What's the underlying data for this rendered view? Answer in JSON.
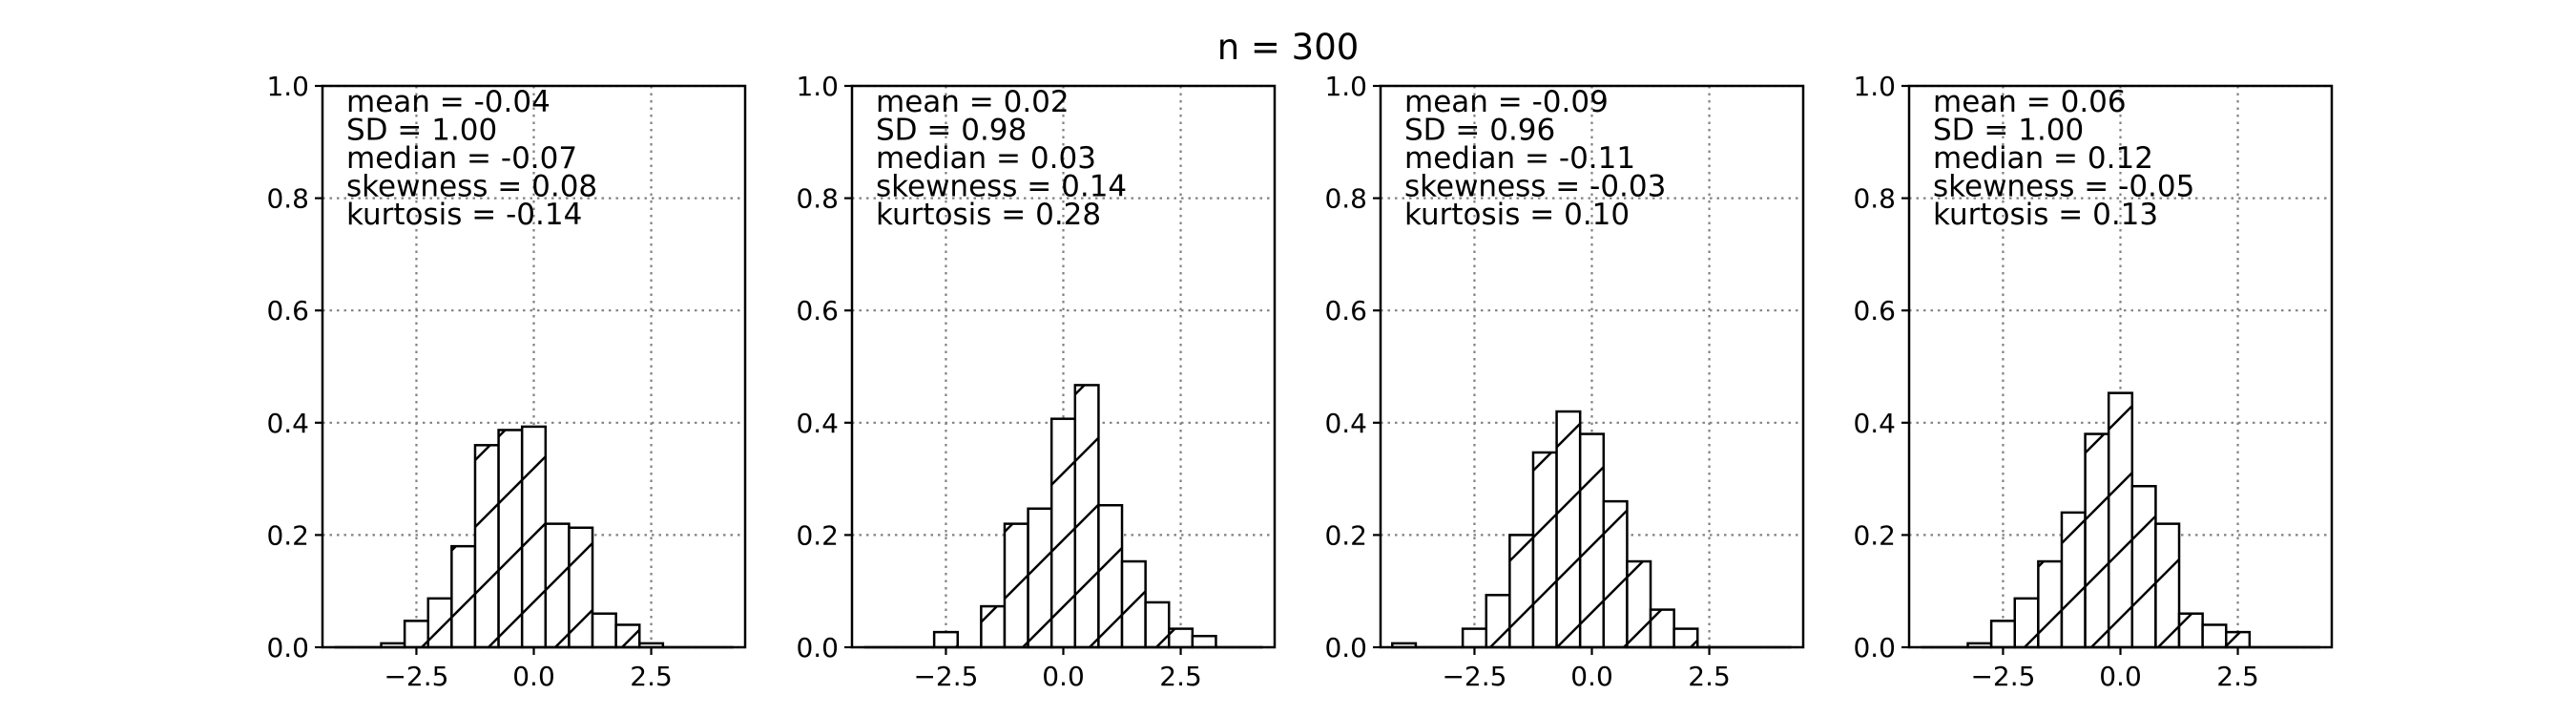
{
  "chart_data": {
    "title": "n = 300",
    "panels": [
      {
        "type": "bar",
        "bin_width": 0.5,
        "bin_centers": [
          -4.0,
          -3.5,
          -3.0,
          -2.5,
          -2.0,
          -1.5,
          -1.0,
          -0.5,
          0.0,
          0.5,
          1.0,
          1.5,
          2.0,
          2.5,
          3.0,
          3.5,
          4.0
        ],
        "values": [
          0.0,
          0.0,
          0.007,
          0.047,
          0.087,
          0.18,
          0.36,
          0.387,
          0.393,
          0.22,
          0.213,
          0.06,
          0.04,
          0.007,
          0.0,
          0.0,
          0.0
        ],
        "stats": [
          "mean = -0.04",
          "SD = 1.00",
          "median = -0.07",
          "skewness = 0.08",
          "kurtosis = -0.14"
        ]
      },
      {
        "type": "bar",
        "bin_width": 0.5,
        "bin_centers": [
          -4.0,
          -3.5,
          -3.0,
          -2.5,
          -2.0,
          -1.5,
          -1.0,
          -0.5,
          0.0,
          0.5,
          1.0,
          1.5,
          2.0,
          2.5,
          3.0,
          3.5,
          4.0
        ],
        "values": [
          0.0,
          0.0,
          0.0,
          0.027,
          0.0,
          0.073,
          0.22,
          0.247,
          0.407,
          0.467,
          0.253,
          0.153,
          0.08,
          0.033,
          0.02,
          0.0,
          0.0
        ],
        "stats": [
          "mean = 0.02",
          "SD = 0.98",
          "median = 0.03",
          "skewness = 0.14",
          "kurtosis = 0.28"
        ]
      },
      {
        "type": "bar",
        "bin_width": 0.5,
        "bin_centers": [
          -4.0,
          -3.5,
          -3.0,
          -2.5,
          -2.0,
          -1.5,
          -1.0,
          -0.5,
          0.0,
          0.5,
          1.0,
          1.5,
          2.0,
          2.5,
          3.0,
          3.5,
          4.0
        ],
        "values": [
          0.007,
          0.0,
          0.0,
          0.033,
          0.093,
          0.2,
          0.347,
          0.42,
          0.38,
          0.26,
          0.153,
          0.067,
          0.033,
          0.0,
          0.0,
          0.0,
          0.0
        ],
        "stats": [
          "mean = -0.09",
          "SD = 0.96",
          "median = -0.11",
          "skewness = -0.03",
          "kurtosis = 0.10"
        ]
      },
      {
        "type": "bar",
        "bin_width": 0.5,
        "bin_centers": [
          -4.0,
          -3.5,
          -3.0,
          -2.5,
          -2.0,
          -1.5,
          -1.0,
          -0.5,
          0.0,
          0.5,
          1.0,
          1.5,
          2.0,
          2.5,
          3.0,
          3.5,
          4.0
        ],
        "values": [
          0.0,
          0.0,
          0.007,
          0.047,
          0.087,
          0.153,
          0.24,
          0.38,
          0.453,
          0.287,
          0.22,
          0.06,
          0.04,
          0.027,
          0.0,
          0.0,
          0.0
        ],
        "stats": [
          "mean = 0.06",
          "SD = 1.00",
          "median = 0.12",
          "skewness = -0.05",
          "kurtosis = 0.13"
        ]
      }
    ],
    "x_ticks": [
      -2.5,
      0.0,
      2.5
    ],
    "x_tick_labels": [
      "−2.5",
      "0.0",
      "2.5"
    ],
    "y_ticks": [
      0.0,
      0.2,
      0.4,
      0.6,
      0.8,
      1.0
    ],
    "y_tick_labels": [
      "0.0",
      "0.2",
      "0.4",
      "0.6",
      "0.8",
      "1.0"
    ],
    "xlim": [
      -4.5,
      4.5
    ],
    "ylim": [
      0,
      1
    ],
    "grid": true,
    "bar_fill": "#ffffff",
    "bar_edge": "#000000",
    "hatch": "diagonal"
  }
}
